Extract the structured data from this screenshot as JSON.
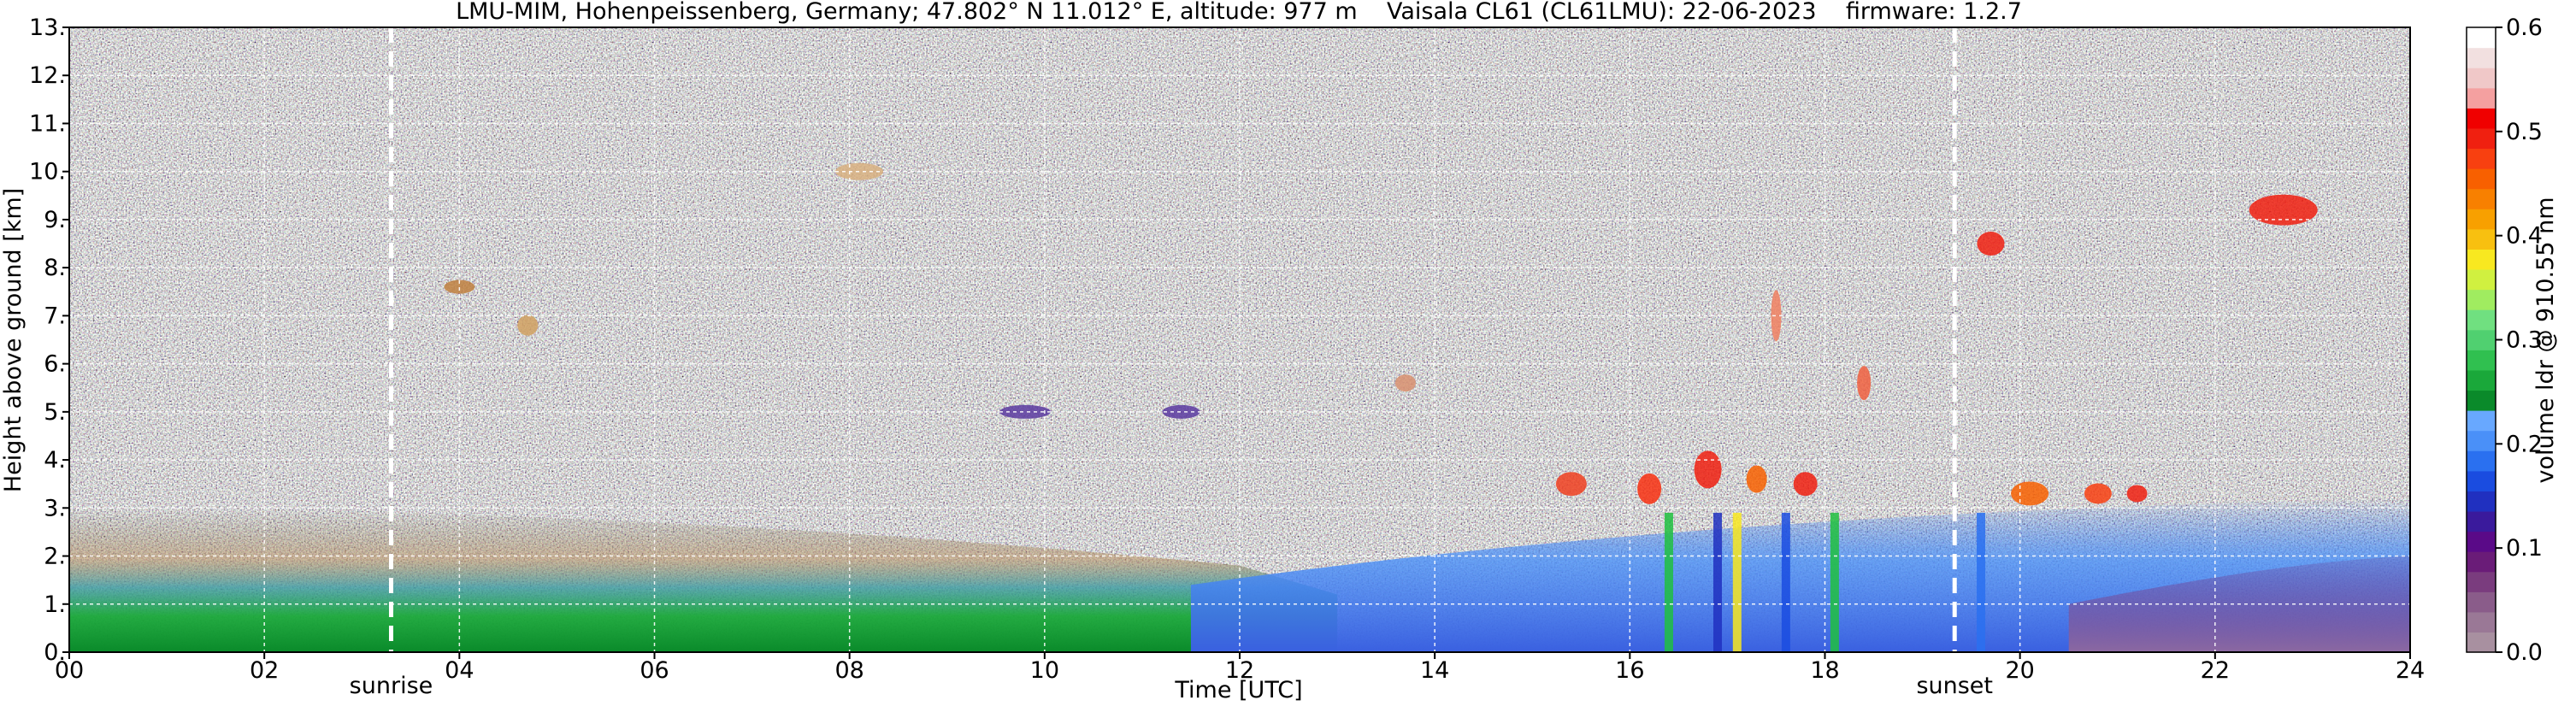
{
  "chart_data": {
    "type": "heatmap",
    "title": "LMU-MIM, Hohenpeissenberg, Germany; 47.802° N 11.012° E, altitude: 977 m    Vaisala CL61 (CL61LMU): 22-06-2023    firmware: 1.2.7",
    "xlabel": "Time [UTC]",
    "ylabel": "Height above ground [km]",
    "xlim": [
      0,
      24
    ],
    "ylim": [
      0,
      13
    ],
    "x_ticks": [
      "00",
      "02",
      "04",
      "06",
      "08",
      "10",
      "12",
      "14",
      "16",
      "18",
      "20",
      "22",
      "24"
    ],
    "y_ticks": [
      "0.",
      "1.",
      "2.",
      "3.",
      "4.",
      "5.",
      "6.",
      "7.",
      "8.",
      "9.",
      "10.",
      "11.",
      "12.",
      "13."
    ],
    "grid": true,
    "colorbar": {
      "label": "volume ldr @ 910.55 nm",
      "range": [
        0.0,
        0.6
      ],
      "ticks": [
        "0.0",
        "0.1",
        "0.2",
        "0.3",
        "0.4",
        "0.5",
        "0.6"
      ],
      "colors": [
        "#a890a0",
        "#9a7896",
        "#8a5c8a",
        "#7a3c7e",
        "#6a1c78",
        "#5a0a88",
        "#3a1a9c",
        "#2030c0",
        "#1a4ce0",
        "#2a70f0",
        "#4a90f8",
        "#68a8ff",
        "#0a8a2a",
        "#1aa83a",
        "#30c050",
        "#50d070",
        "#70e080",
        "#a0ec60",
        "#d0f040",
        "#f8e820",
        "#f8c010",
        "#f8a000",
        "#f88000",
        "#f86000",
        "#f84010",
        "#f02010",
        "#f00000",
        "#f4a0a0",
        "#f0c8c8",
        "#f2e0e0",
        "#ffffff"
      ]
    },
    "annotations": [
      {
        "label": "sunrise",
        "x": 3.3
      },
      {
        "label": "sunset",
        "x": 19.33
      }
    ],
    "features": [
      {
        "name": "boundary-layer depolarization",
        "x_range": [
          0,
          24
        ],
        "y_range": [
          0,
          3.0
        ]
      },
      {
        "name": "cirrus / high cloud depolarization",
        "x_range": [
          19.3,
          23.2
        ],
        "y_range": [
          8.2,
          10.5
        ]
      },
      {
        "name": "convective cloud depolarization",
        "x_range": [
          15.4,
          21.4
        ],
        "y_range": [
          2.8,
          6.5
        ]
      }
    ]
  }
}
